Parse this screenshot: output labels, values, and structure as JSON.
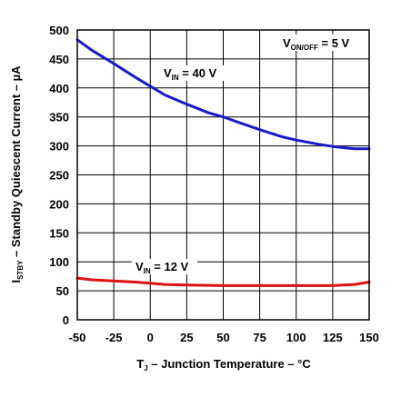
{
  "chart_data": {
    "type": "line",
    "xlabel": {
      "prefix": "T",
      "sub": "J",
      "rest": " – Junction Temperature – °C"
    },
    "ylabel": {
      "prefix": "I",
      "sub": "STBY",
      "rest": " – Standby Quiescent Current – µA"
    },
    "xlim": [
      -50,
      150
    ],
    "ylim": [
      0,
      500
    ],
    "xticks": [
      -50,
      -25,
      0,
      25,
      50,
      75,
      100,
      125,
      150
    ],
    "yticks": [
      0,
      50,
      100,
      150,
      200,
      250,
      300,
      350,
      400,
      450,
      500
    ],
    "grid": true,
    "series": [
      {
        "name": "VIN = 40 V",
        "label_prefix": "V",
        "label_sub": "IN",
        "label_rest": " = 40 V",
        "color": "#1a1acc",
        "x": [
          -50,
          -40,
          -25,
          -10,
          0,
          10,
          25,
          40,
          50,
          60,
          75,
          90,
          100,
          115,
          125,
          140,
          150
        ],
        "y": [
          483,
          465,
          442,
          418,
          403,
          388,
          372,
          357,
          350,
          341,
          328,
          316,
          310,
          303,
          299,
          295,
          295
        ]
      },
      {
        "name": "VIN = 12 V",
        "label_prefix": "V",
        "label_sub": "IN",
        "label_rest": " = 12 V",
        "color": "#dd1111",
        "x": [
          -50,
          -40,
          -25,
          -10,
          0,
          10,
          25,
          50,
          75,
          100,
          125,
          140,
          150
        ],
        "y": [
          72,
          69,
          67,
          65,
          63,
          61,
          60,
          59,
          59,
          59,
          59,
          61,
          65
        ]
      }
    ],
    "annotations": [
      {
        "prefix": "V",
        "sub": "ON/OFF",
        "rest": " = 5 V"
      }
    ]
  }
}
